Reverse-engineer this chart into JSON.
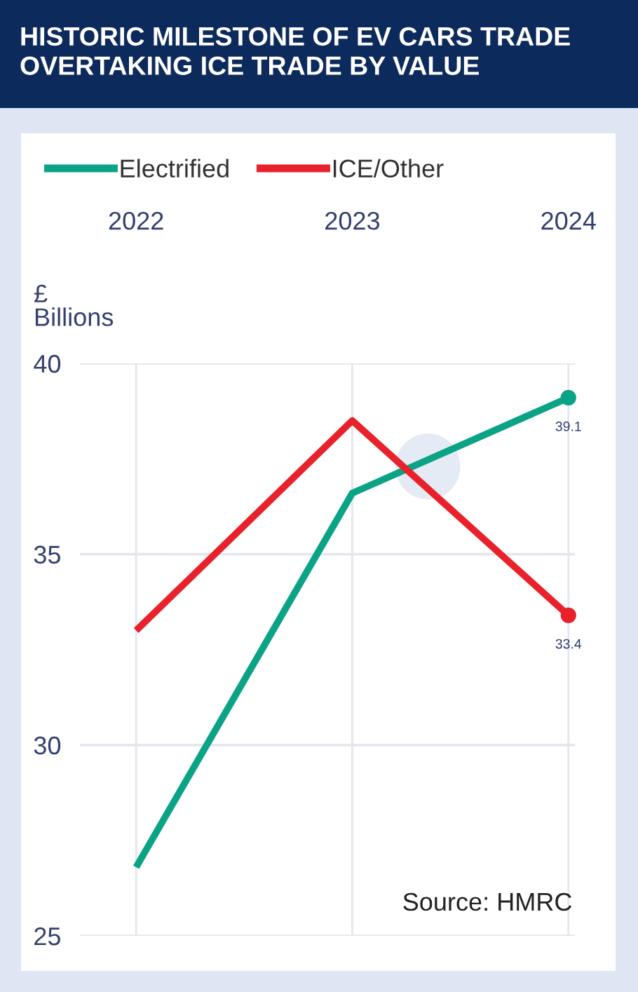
{
  "chart_data": {
    "type": "line",
    "title": "HISTORIC MILESTONE OF EV CARS TRADE\nOVERTAKING ICE TRADE BY VALUE",
    "ylabel": "£\nBillions",
    "categories": [
      "2022",
      "2023",
      "2024"
    ],
    "series": [
      {
        "name": "Electrified",
        "color": "#0ba386",
        "values": [
          26.8,
          36.6,
          39.1
        ],
        "value_labels": [
          null,
          null,
          "39.1"
        ]
      },
      {
        "name": "ICE/Other",
        "color": "#e8212b",
        "values": [
          33.0,
          38.5,
          33.4
        ],
        "value_labels": [
          null,
          null,
          "33.4"
        ]
      }
    ],
    "ylim": [
      25,
      40
    ],
    "yticks": [
      25,
      30,
      35,
      40
    ],
    "grid": true,
    "legend": "top left",
    "annotations": [
      "Source: HMRC"
    ]
  }
}
